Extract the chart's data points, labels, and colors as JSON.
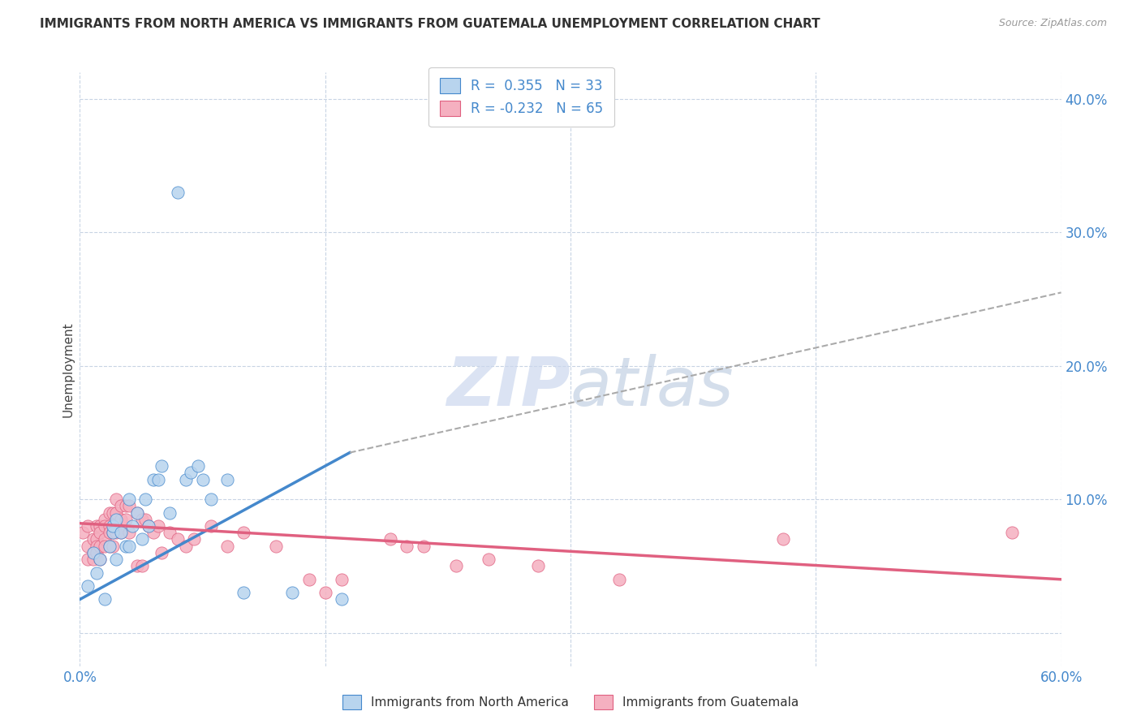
{
  "title": "IMMIGRANTS FROM NORTH AMERICA VS IMMIGRANTS FROM GUATEMALA UNEMPLOYMENT CORRELATION CHART",
  "source": "Source: ZipAtlas.com",
  "ylabel": "Unemployment",
  "x_min": 0.0,
  "x_max": 0.6,
  "y_min": -0.025,
  "y_max": 0.42,
  "yticks": [
    0.0,
    0.1,
    0.2,
    0.3,
    0.4
  ],
  "ytick_labels": [
    "",
    "10.0%",
    "20.0%",
    "30.0%",
    "40.0%"
  ],
  "xtick_positions": [
    0.0,
    0.15,
    0.3,
    0.45,
    0.6
  ],
  "xtick_labels": [
    "0.0%",
    "",
    "",
    "",
    "60.0%"
  ],
  "blue_R": 0.355,
  "blue_N": 33,
  "pink_R": -0.232,
  "pink_N": 65,
  "blue_color": "#b8d4ee",
  "pink_color": "#f5b0c0",
  "blue_line_color": "#4488cc",
  "pink_line_color": "#e06080",
  "blue_scatter": [
    [
      0.005,
      0.035
    ],
    [
      0.008,
      0.06
    ],
    [
      0.01,
      0.045
    ],
    [
      0.012,
      0.055
    ],
    [
      0.015,
      0.025
    ],
    [
      0.018,
      0.065
    ],
    [
      0.02,
      0.075
    ],
    [
      0.02,
      0.08
    ],
    [
      0.022,
      0.085
    ],
    [
      0.022,
      0.055
    ],
    [
      0.025,
      0.075
    ],
    [
      0.028,
      0.065
    ],
    [
      0.03,
      0.1
    ],
    [
      0.03,
      0.065
    ],
    [
      0.032,
      0.08
    ],
    [
      0.035,
      0.09
    ],
    [
      0.038,
      0.07
    ],
    [
      0.04,
      0.1
    ],
    [
      0.042,
      0.08
    ],
    [
      0.045,
      0.115
    ],
    [
      0.048,
      0.115
    ],
    [
      0.05,
      0.125
    ],
    [
      0.055,
      0.09
    ],
    [
      0.06,
      0.33
    ],
    [
      0.065,
      0.115
    ],
    [
      0.068,
      0.12
    ],
    [
      0.072,
      0.125
    ],
    [
      0.075,
      0.115
    ],
    [
      0.08,
      0.1
    ],
    [
      0.09,
      0.115
    ],
    [
      0.1,
      0.03
    ],
    [
      0.13,
      0.03
    ],
    [
      0.16,
      0.025
    ]
  ],
  "pink_scatter": [
    [
      0.002,
      0.075
    ],
    [
      0.005,
      0.08
    ],
    [
      0.005,
      0.065
    ],
    [
      0.005,
      0.055
    ],
    [
      0.008,
      0.07
    ],
    [
      0.008,
      0.06
    ],
    [
      0.008,
      0.055
    ],
    [
      0.01,
      0.08
    ],
    [
      0.01,
      0.07
    ],
    [
      0.01,
      0.065
    ],
    [
      0.01,
      0.06
    ],
    [
      0.012,
      0.08
    ],
    [
      0.012,
      0.075
    ],
    [
      0.012,
      0.065
    ],
    [
      0.012,
      0.055
    ],
    [
      0.015,
      0.085
    ],
    [
      0.015,
      0.08
    ],
    [
      0.015,
      0.07
    ],
    [
      0.015,
      0.065
    ],
    [
      0.018,
      0.09
    ],
    [
      0.018,
      0.08
    ],
    [
      0.018,
      0.075
    ],
    [
      0.018,
      0.065
    ],
    [
      0.02,
      0.09
    ],
    [
      0.02,
      0.075
    ],
    [
      0.02,
      0.065
    ],
    [
      0.022,
      0.1
    ],
    [
      0.022,
      0.09
    ],
    [
      0.022,
      0.075
    ],
    [
      0.025,
      0.095
    ],
    [
      0.025,
      0.085
    ],
    [
      0.025,
      0.075
    ],
    [
      0.028,
      0.095
    ],
    [
      0.028,
      0.085
    ],
    [
      0.03,
      0.095
    ],
    [
      0.03,
      0.075
    ],
    [
      0.035,
      0.09
    ],
    [
      0.035,
      0.05
    ],
    [
      0.038,
      0.085
    ],
    [
      0.038,
      0.05
    ],
    [
      0.04,
      0.085
    ],
    [
      0.042,
      0.08
    ],
    [
      0.045,
      0.075
    ],
    [
      0.048,
      0.08
    ],
    [
      0.05,
      0.06
    ],
    [
      0.055,
      0.075
    ],
    [
      0.06,
      0.07
    ],
    [
      0.065,
      0.065
    ],
    [
      0.07,
      0.07
    ],
    [
      0.08,
      0.08
    ],
    [
      0.09,
      0.065
    ],
    [
      0.1,
      0.075
    ],
    [
      0.12,
      0.065
    ],
    [
      0.14,
      0.04
    ],
    [
      0.15,
      0.03
    ],
    [
      0.16,
      0.04
    ],
    [
      0.19,
      0.07
    ],
    [
      0.2,
      0.065
    ],
    [
      0.21,
      0.065
    ],
    [
      0.23,
      0.05
    ],
    [
      0.25,
      0.055
    ],
    [
      0.28,
      0.05
    ],
    [
      0.33,
      0.04
    ],
    [
      0.43,
      0.07
    ],
    [
      0.57,
      0.075
    ]
  ],
  "blue_trend_x_start": 0.0,
  "blue_trend_x_solid_end": 0.165,
  "blue_trend_x_dash_end": 0.6,
  "blue_trend_y_at_0": 0.025,
  "blue_trend_y_at_solid_end": 0.135,
  "blue_trend_y_at_dash_end": 0.255,
  "pink_trend_x_start": 0.0,
  "pink_trend_x_end": 0.6,
  "pink_trend_y_at_start": 0.082,
  "pink_trend_y_at_end": 0.04,
  "watermark_zip_color": "#ccd8ee",
  "watermark_atlas_color": "#b8c8de",
  "background_color": "#ffffff",
  "grid_color": "#c8d4e4",
  "tick_color": "#4488cc",
  "title_color": "#333333",
  "source_color": "#999999"
}
